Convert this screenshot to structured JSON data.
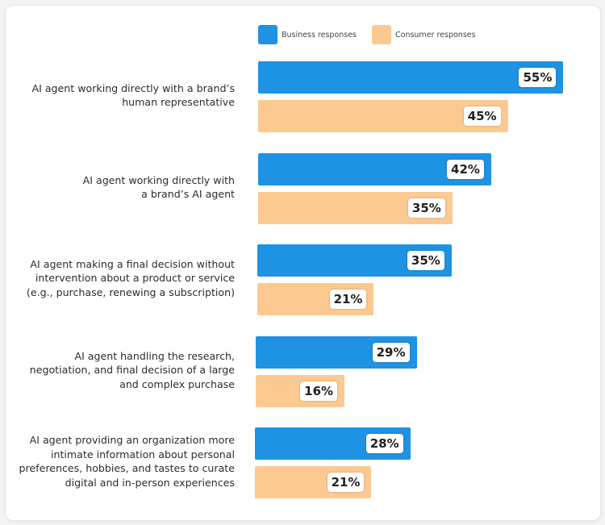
{
  "chart_data": {
    "type": "bar",
    "orientation": "horizontal",
    "categories": [
      [
        "AI agent working directly with a brand’s",
        "human representative"
      ],
      [
        "AI agent working directly with",
        "a brand’s AI agent"
      ],
      [
        "AI agent making a final decision without",
        "intervention about a product or service",
        "(e.g., purchase, renewing a subscription)"
      ],
      [
        "AI agent handling the research,",
        "negotiation, and final decision of a large",
        "and complex purchase"
      ],
      [
        "AI agent providing an organization more",
        "intimate information about personal",
        "preferences, hobbies, and tastes to curate",
        "digital and in-person experiences"
      ]
    ],
    "series": [
      {
        "name": "Business responses",
        "color": "#1e92e3",
        "values": [
          55,
          42,
          35,
          29,
          28
        ]
      },
      {
        "name": "Consumer responses",
        "color": "#fcc990",
        "values": [
          45,
          35,
          21,
          16,
          21
        ]
      }
    ],
    "value_suffix": "%",
    "legend": "top",
    "grid": false
  }
}
